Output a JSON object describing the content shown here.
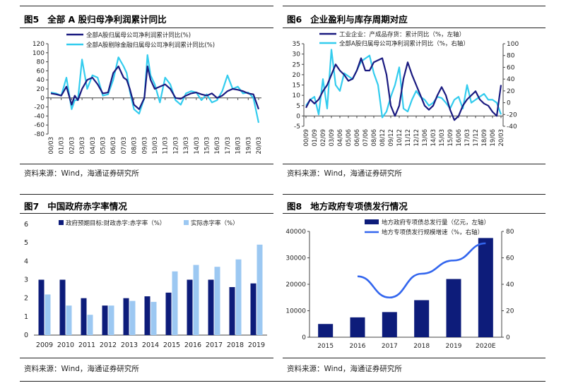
{
  "colors": {
    "dark": "#1a1a80",
    "light": "#33ccee",
    "navy": "#0d1c7a",
    "lightbar": "#9cc8f2",
    "royal": "#3366ee"
  },
  "panel5": {
    "label": "图5",
    "title": "全部 A 股归母净利润累计同比",
    "source": "资料来源：Wind，海通证券研究所"
  },
  "panel6": {
    "label": "图6",
    "title": "企业盈利与库存周期对应",
    "source": "资料来源：Wind，海通证券研究所"
  },
  "panel7": {
    "label": "图7",
    "title": "中国政府赤字率情况",
    "source": "资料来源：Wind，海通证券研究所"
  },
  "panel8": {
    "label": "图8",
    "title": "地方政府专项债发行情况",
    "source": "资料来源：Wind，海通证券研究所"
  },
  "chart_data": [
    {
      "type": "line",
      "ylim": [
        -80,
        120
      ],
      "yticks": [
        -80,
        -60,
        -40,
        -20,
        0,
        20,
        40,
        60,
        80,
        100,
        120
      ],
      "xticks": [
        "00/03",
        "01/03",
        "02/03",
        "03/03",
        "04/03",
        "05/03",
        "06/03",
        "07/03",
        "08/03",
        "09/03",
        "10/03",
        "11/03",
        "12/03",
        "13/03",
        "14/03",
        "15/03",
        "16/03",
        "17/03",
        "18/03",
        "19/03",
        "20/03"
      ],
      "legend": "top-center",
      "series": [
        {
          "name": "全部A股归属母公司净利润累计同比(%)",
          "color": "dark",
          "x": [
            0,
            0.5,
            1,
            1.5,
            2,
            2.3,
            2.6,
            3,
            3.5,
            4,
            4.5,
            5,
            5.5,
            6,
            6.5,
            7,
            7.3,
            7.6,
            8,
            8.5,
            9,
            9.3,
            9.6,
            10,
            10.5,
            11,
            11.5,
            12,
            12.5,
            13,
            13.5,
            14,
            14.5,
            15,
            15.5,
            16,
            16.5,
            17,
            17.5,
            18,
            18.5,
            19,
            19.5,
            20
          ],
          "y": [
            10,
            8,
            5,
            25,
            -15,
            5,
            -5,
            20,
            40,
            45,
            30,
            10,
            12,
            55,
            70,
            45,
            40,
            20,
            -15,
            -25,
            0,
            70,
            40,
            20,
            25,
            30,
            20,
            0,
            -2,
            5,
            10,
            12,
            8,
            5,
            10,
            0,
            5,
            15,
            20,
            18,
            15,
            10,
            8,
            -25
          ]
        },
        {
          "name": "全部A股剔除金融归属母公司净利润累计同比(%)",
          "color": "light",
          "x": [
            0,
            0.5,
            1,
            1.5,
            2,
            2.3,
            2.6,
            3,
            3.5,
            4,
            4.5,
            5,
            5.5,
            6,
            6.5,
            7,
            7.3,
            7.6,
            8,
            8.5,
            9,
            9.3,
            9.6,
            10,
            10.5,
            11,
            11.5,
            12,
            12.5,
            13,
            13.5,
            14,
            14.5,
            15,
            15.5,
            16,
            16.5,
            17,
            17.5,
            18,
            18.5,
            19,
            19.5,
            20
          ],
          "y": [
            12,
            10,
            5,
            45,
            -25,
            -5,
            -5,
            85,
            20,
            50,
            45,
            5,
            8,
            40,
            90,
            70,
            55,
            15,
            -25,
            -35,
            0,
            95,
            50,
            30,
            -10,
            45,
            30,
            -5,
            -15,
            10,
            15,
            12,
            -5,
            8,
            -10,
            -5,
            15,
            50,
            20,
            25,
            10,
            12,
            0,
            -55
          ]
        }
      ]
    },
    {
      "type": "line",
      "ylim_left": [
        -5,
        35
      ],
      "yticks_left": [
        -5,
        0,
        5,
        10,
        15,
        20,
        25,
        30,
        35
      ],
      "ylim_right": [
        -40,
        100
      ],
      "yticks_right": [
        -40,
        -20,
        0,
        20,
        40,
        60,
        80,
        100
      ],
      "xticks": [
        "00/09",
        "01/09",
        "02/09",
        "03/09",
        "04/06",
        "05/06",
        "06/06",
        "07/06",
        "08/06",
        "08/12",
        "09/12",
        "10/12",
        "11/12",
        "12/12",
        "13/06",
        "14/03",
        "15/03",
        "15/09",
        "16/06",
        "17/03",
        "17/12",
        "18/09",
        "19/06",
        "20/03"
      ],
      "legend": "top-center",
      "series": [
        {
          "name": "工业企业：产成品存货：累计同比（%，左轴）",
          "axis": "left",
          "color": "dark",
          "x": [
            0,
            0.5,
            1,
            1.5,
            2,
            2.5,
            3,
            3.5,
            4,
            4.5,
            5,
            5.5,
            6,
            6.5,
            7,
            7.5,
            8,
            8.5,
            9,
            9.5,
            10,
            10.5,
            11,
            11.5,
            12,
            12.5,
            13,
            13.5,
            14,
            14.5,
            15,
            15.5,
            16,
            16.5,
            17,
            17.5,
            18,
            18.5,
            19,
            19.5,
            20,
            20.5,
            21,
            21.5,
            22,
            22.5,
            23
          ],
          "y": [
            4,
            8,
            6,
            8,
            12,
            15,
            20,
            25,
            22,
            20,
            17,
            18,
            22,
            28,
            22,
            22,
            26,
            27,
            28,
            20,
            5,
            0,
            5,
            18,
            26,
            20,
            15,
            10,
            5,
            3,
            5,
            10,
            14,
            10,
            3,
            -2,
            0,
            5,
            8,
            10,
            12,
            8,
            6,
            5,
            2,
            0,
            15
          ]
        },
        {
          "name": "全部A股归属母公司净利润累计同比（%，右轴）",
          "axis": "right",
          "color": "light",
          "x": [
            0,
            0.5,
            1,
            1.5,
            2,
            2.5,
            3,
            3.5,
            4,
            4.5,
            5,
            5.5,
            6,
            6.5,
            7,
            7.5,
            8,
            8.5,
            9,
            9.5,
            10,
            10.5,
            11,
            11.5,
            12,
            12.5,
            13,
            13.5,
            14,
            14.5,
            15,
            15.5,
            16,
            16.5,
            17,
            17.5,
            18,
            18.5,
            19,
            19.5,
            20,
            20.5,
            21,
            21.5,
            22,
            22.5,
            23
          ],
          "y": [
            -5,
            5,
            10,
            -20,
            40,
            -10,
            90,
            30,
            20,
            50,
            45,
            40,
            55,
            70,
            75,
            80,
            50,
            30,
            -25,
            -15,
            10,
            30,
            60,
            -10,
            -15,
            5,
            20,
            10,
            5,
            -5,
            0,
            10,
            8,
            0,
            -10,
            5,
            10,
            -10,
            30,
            0,
            5,
            10,
            15,
            5,
            5,
            0,
            -20
          ]
        }
      ]
    },
    {
      "type": "bar",
      "ylim": [
        0,
        6
      ],
      "yticks": [
        0,
        1,
        2,
        3,
        4,
        5,
        6
      ],
      "categories": [
        "2009",
        "2010",
        "2011",
        "2012",
        "2013",
        "2014",
        "2015",
        "2016",
        "2017",
        "2018",
        "2019"
      ],
      "legend": "top-right",
      "series": [
        {
          "name": "政府预期目标:财政赤字:赤字率（%）",
          "color": "navy",
          "values": [
            3.0,
            3.0,
            2.0,
            1.6,
            2.0,
            2.1,
            2.3,
            3.0,
            3.0,
            2.6,
            2.8
          ]
        },
        {
          "name": "实际赤字率（%）",
          "color": "lightbar",
          "values": [
            2.2,
            1.6,
            1.1,
            1.6,
            1.85,
            1.8,
            3.45,
            3.8,
            3.7,
            4.1,
            4.9
          ]
        }
      ]
    },
    {
      "type": "bar",
      "ylim_left": [
        0,
        40000
      ],
      "yticks_left": [
        0,
        10000,
        20000,
        30000,
        40000
      ],
      "ylim_right": [
        0,
        80
      ],
      "yticks_right": [
        0,
        20,
        40,
        60,
        80
      ],
      "categories": [
        "2015",
        "2016",
        "2017",
        "2018",
        "2019",
        "2020E"
      ],
      "legend": "top-center",
      "series": [
        {
          "name": "地方政府专项债总发行量（亿元，左轴）",
          "type": "bar",
          "axis": "left",
          "color": "navy",
          "values": [
            5000,
            7500,
            9500,
            14000,
            22000,
            37500
          ]
        },
        {
          "name": "地方专项债发行规模增速（%，右轴）",
          "type": "line",
          "axis": "right",
          "color": "royal",
          "x": [
            1,
            2,
            3,
            4,
            5
          ],
          "values": [
            46,
            30,
            48,
            58,
            71
          ]
        }
      ]
    }
  ]
}
